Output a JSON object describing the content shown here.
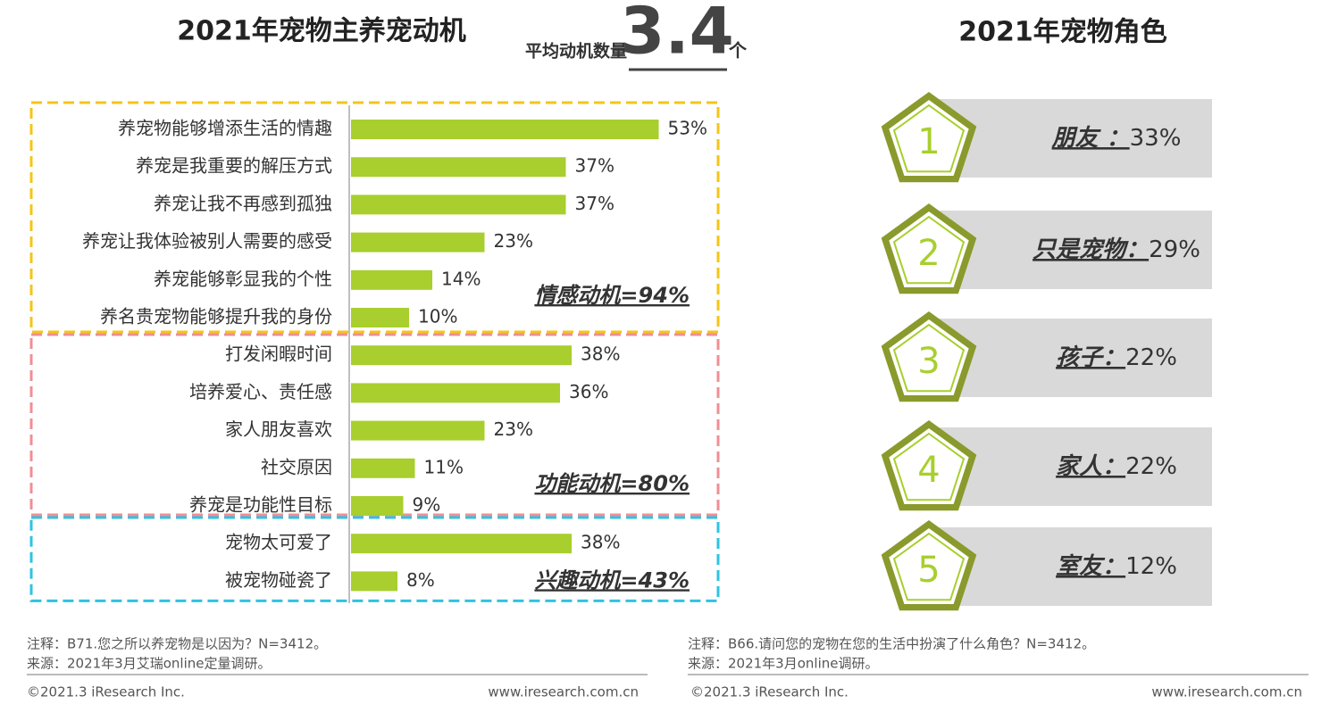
{
  "chart_data": [
    {
      "type": "bar",
      "title": "2021年宠物主养宠动机",
      "subtitle": "平均动机数量",
      "highlight": 3.4,
      "highlight_unit": "个",
      "color": "#a8cf2e",
      "groups": [
        {
          "label": "情感动机=94%",
          "color": "#f5c518",
          "categories": [
            "养宠物能够增添生活的情趣",
            "养宠是我重要的解压方式",
            "养宠让我不再感到孤独",
            "养宠让我体验被别人需要的感受",
            "养宠能够彰显我的个性",
            "养名贵宠物能够提升我的身份"
          ],
          "values": [
            53,
            37,
            37,
            23,
            14,
            10
          ],
          "value_labels": [
            "53%",
            "37%",
            "37%",
            "23%",
            "14%",
            "10%"
          ]
        },
        {
          "label": "功能动机=80%",
          "color": "#ef8f94",
          "categories": [
            "打发闲暇时间",
            "培养爱心、责任感",
            "家人朋友喜欢",
            "社交原因",
            "养宠是功能性目标"
          ],
          "values": [
            38,
            36,
            23,
            11,
            9
          ],
          "value_labels": [
            "38%",
            "36%",
            "23%",
            "11%",
            "9%"
          ]
        },
        {
          "label": "兴趣动机=43%",
          "color": "#2ec3e3",
          "categories": [
            "宠物太可爱了",
            "被宠物碰瓷了"
          ],
          "values": [
            38,
            8
          ],
          "value_labels": [
            "38%",
            "8%"
          ]
        }
      ],
      "note": "注释：B71.您之所以养宠物是以因为？N=3412。",
      "source": "来源：2021年3月艾瑞online定量调研。",
      "copyright": "©2021.3 iResearch Inc.",
      "url": "www.iresearch.com.cn"
    },
    {
      "type": "ranking",
      "title": "2021年宠物角色",
      "ranks": [
        1,
        2,
        3,
        4,
        5
      ],
      "categories": [
        "朋友 ：",
        "只是宠物：",
        "孩子：",
        "家人：",
        "室友："
      ],
      "values": [
        33,
        29,
        22,
        22,
        12
      ],
      "value_labels": [
        "33%",
        "29%",
        "22%",
        "22%",
        "12%"
      ],
      "note": "注释：B66.请问您的宠物在您的生活中扮演了什么角色？N=3412。",
      "source": "来源：2021年3月online调研。",
      "copyright": "©2021.3 iResearch Inc.",
      "url": "www.iresearch.com.cn"
    }
  ]
}
